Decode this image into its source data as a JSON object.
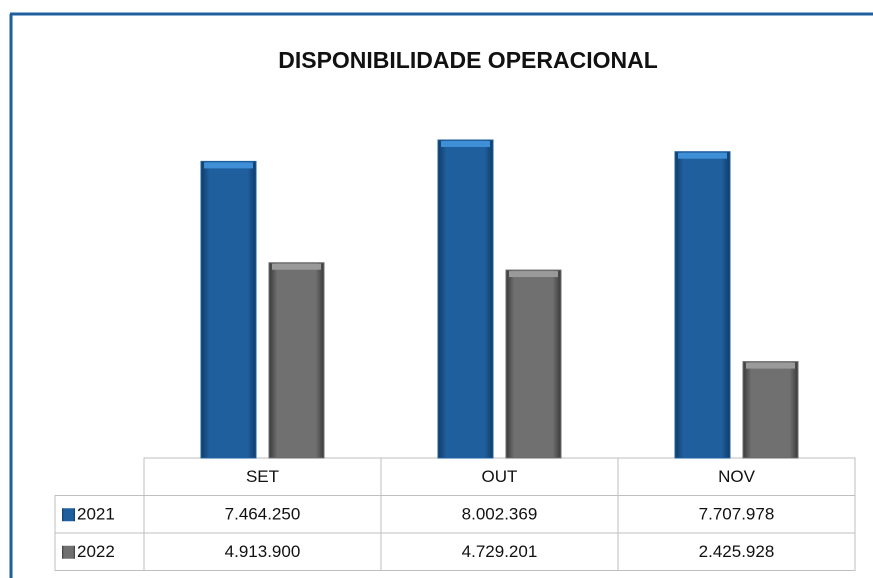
{
  "chart_data": {
    "type": "bar",
    "title": "DISPONIBILIDADE OPERACIONAL",
    "categories": [
      "SET",
      "OUT",
      "NOV"
    ],
    "series": [
      {
        "name": "2021",
        "color": "#1f5f9e",
        "values": [
          7464250,
          8002369,
          7707978
        ],
        "value_labels": [
          "7.464.250",
          "8.002.369",
          "7.707.978"
        ]
      },
      {
        "name": "2022",
        "color": "#6d6d6d",
        "values": [
          4913900,
          4729201,
          2425928
        ],
        "value_labels": [
          "4.913.900",
          "4.729.201",
          "2.425.928"
        ]
      }
    ]
  }
}
